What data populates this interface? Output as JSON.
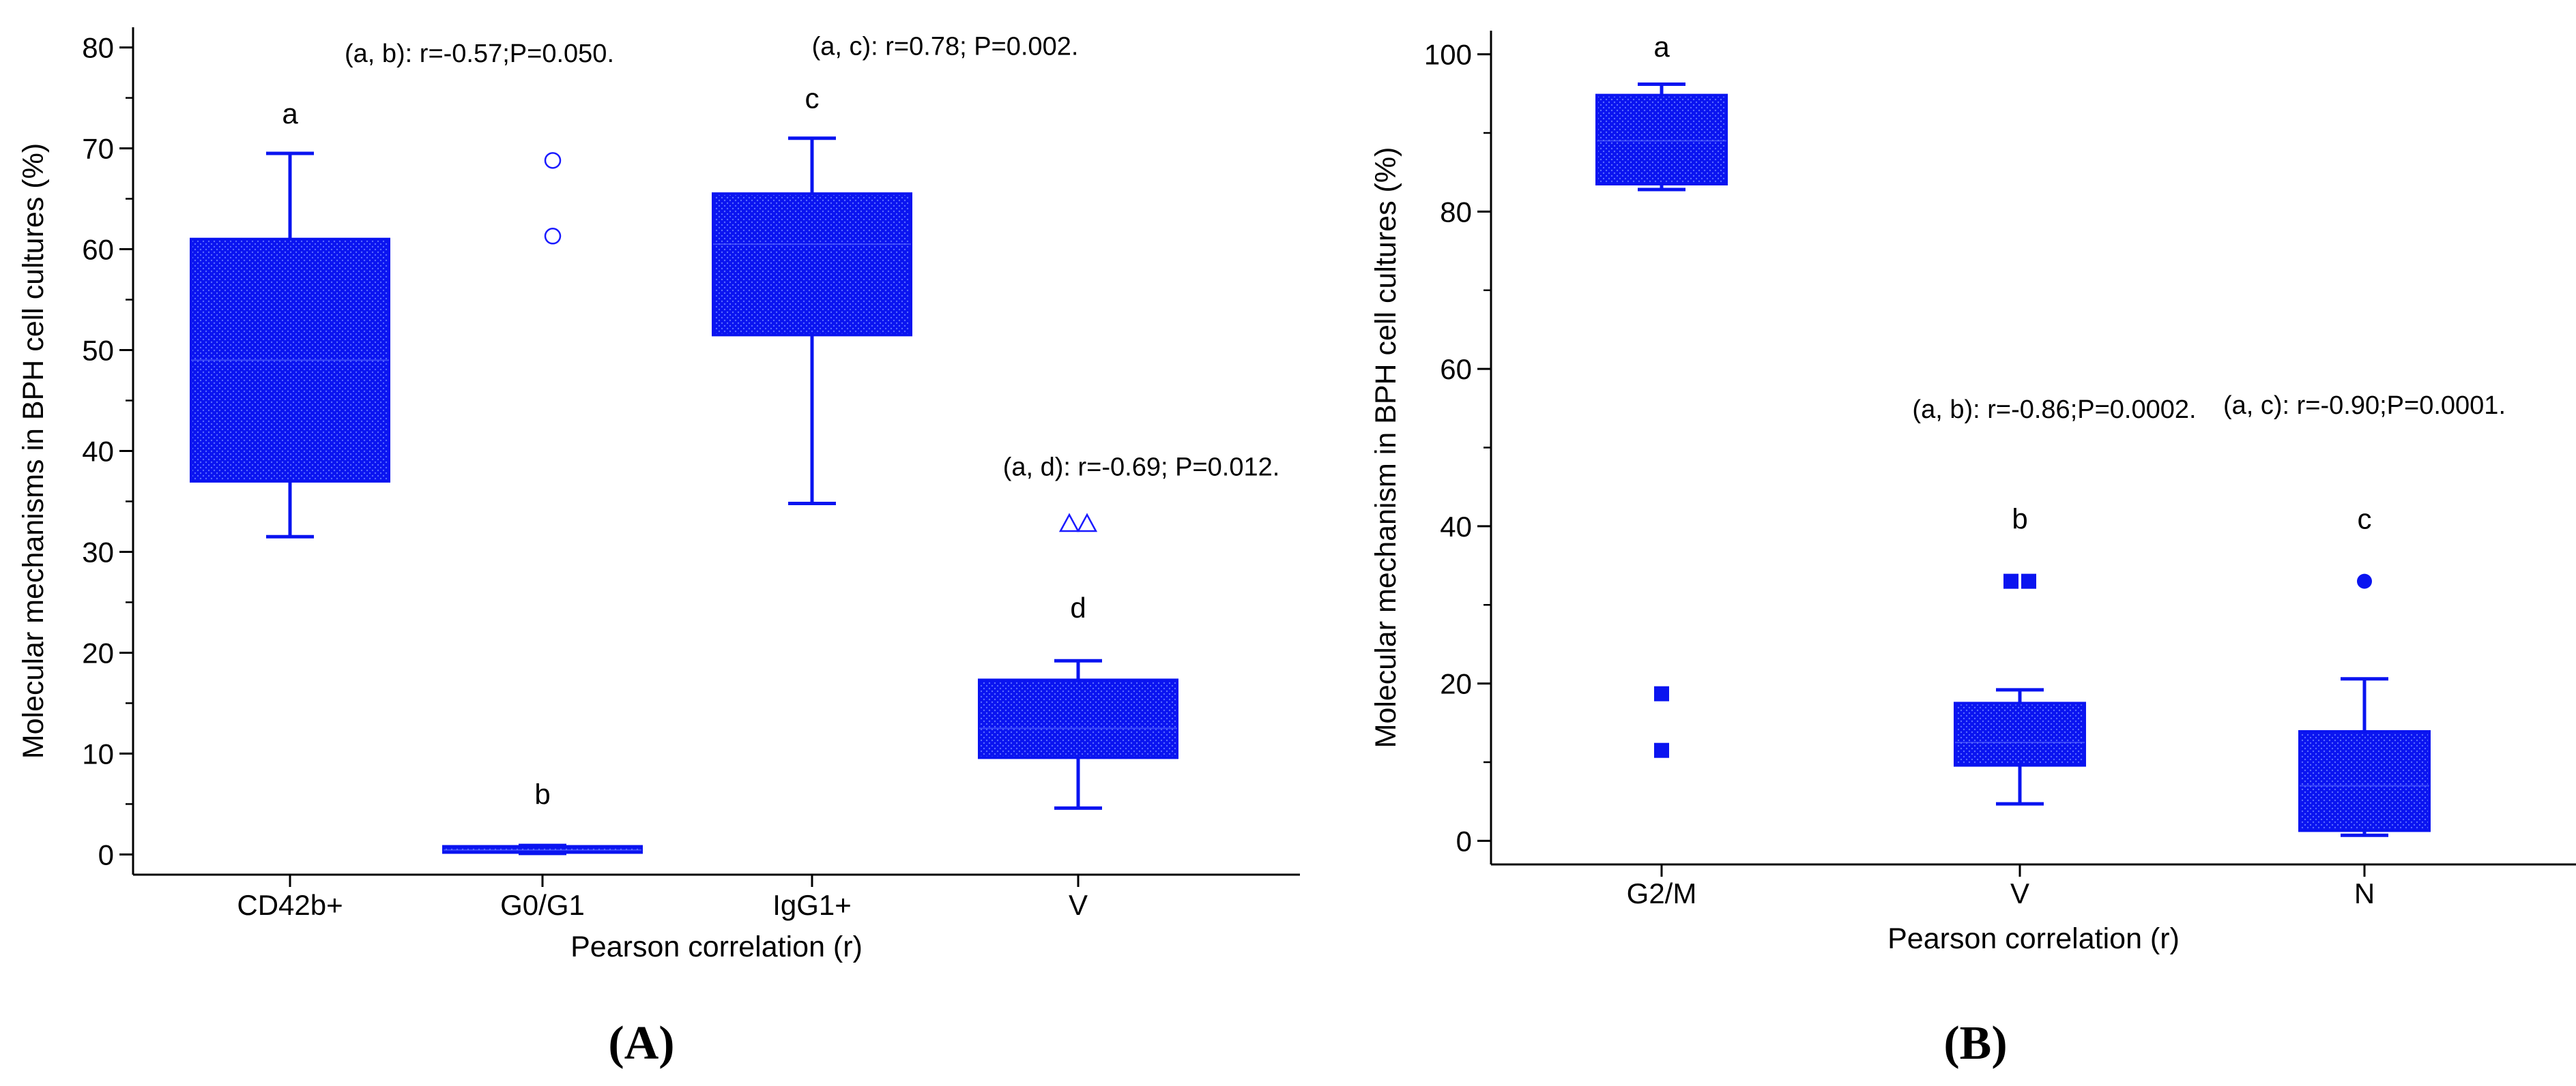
{
  "colors": {
    "box": "#0a14f0",
    "box_texture": "#5a6cff",
    "outlier": "#1a1aff",
    "axis": "#000000"
  },
  "chart_data": [
    {
      "panel_label": "A",
      "type": "box",
      "ylabel": "Molecular mechanisms in BPH cell cultures (%)",
      "xlabel": "Pearson correlation (r)",
      "ylim": [
        -2,
        82
      ],
      "yticks": [
        0,
        10,
        20,
        30,
        40,
        50,
        60,
        70,
        80
      ],
      "yticklabels": [
        "0",
        "10",
        "20",
        "30",
        "40",
        "50",
        "60",
        "70",
        "80"
      ],
      "categories": [
        "CD42b+",
        "G0/G1",
        "IgG1+",
        "V"
      ],
      "boxes": [
        {
          "category": "CD42b+",
          "whisker_low": 31.5,
          "q1": 37,
          "median": 49,
          "q3": 61,
          "whisker_high": 69.5,
          "letter": "a",
          "letter_y": 73.5,
          "outliers": [],
          "outlier_marker": ""
        },
        {
          "category": "G0/G1",
          "whisker_low": 0.1,
          "q1": 0.2,
          "median": 0.45,
          "q3": 0.8,
          "whisker_high": 0.9,
          "letter": "b",
          "letter_y": 6,
          "outliers": [
            61.3,
            68.8
          ],
          "outlier_marker": "circle"
        },
        {
          "category": "IgG1+",
          "whisker_low": 34.8,
          "q1": 51.5,
          "median": 60.5,
          "q3": 65.5,
          "whisker_high": 71,
          "letter": "c",
          "letter_y": 75,
          "outliers": [],
          "outlier_marker": ""
        },
        {
          "category": "V",
          "whisker_low": 4.6,
          "q1": 9.6,
          "median": 12.5,
          "q3": 17.3,
          "whisker_high": 19.2,
          "letter": "d",
          "letter_y": 24.5,
          "outliers": [
            32.8
          ],
          "outlier_marker": "triangle-pair"
        }
      ],
      "annotations": [
        {
          "text": "(a, b): r=-0.57;P=0.050.",
          "x_cat": 0.75,
          "y": 79.5
        },
        {
          "text": "(a, c): r=0.78; P=0.002.",
          "x_cat": 2.5,
          "y": 80.2
        },
        {
          "text": "(a, d): r=-0.69; P=0.012.",
          "x_cat": 3.25,
          "y": 38.5
        }
      ]
    },
    {
      "panel_label": "B",
      "type": "box",
      "ylabel": "Molecular mechanism in BPH cell cultures (%)",
      "xlabel": "Pearson correlation (r)",
      "ylim": [
        -3,
        103
      ],
      "yticks": [
        0,
        20,
        40,
        60,
        80,
        100
      ],
      "yticklabels": [
        "0",
        "20",
        "40",
        "60",
        "80",
        "100"
      ],
      "categories": [
        "G2/M",
        "V",
        "N"
      ],
      "boxes": [
        {
          "category": "G2/M",
          "whisker_low": 82.8,
          "q1": 83.5,
          "median": 89,
          "q3": 94.8,
          "whisker_high": 96.2,
          "letter": "a",
          "letter_y": 101,
          "outliers": [
            11.5,
            18.7
          ],
          "outlier_marker": "square"
        },
        {
          "category": "V",
          "whisker_low": 4.7,
          "q1": 9.6,
          "median": 12.5,
          "q3": 17.5,
          "whisker_high": 19.2,
          "letter": "b",
          "letter_y": 41,
          "outliers": [
            33
          ],
          "outlier_marker": "square-pair"
        },
        {
          "category": "N",
          "whisker_low": 0.7,
          "q1": 1.3,
          "median": 7,
          "q3": 13.9,
          "whisker_high": 20.6,
          "letter": "c",
          "letter_y": 41,
          "outliers": [
            33
          ],
          "outlier_marker": "dot"
        }
      ],
      "annotations": [
        {
          "text": "(a, b): r=-0.86;P=0.0002.",
          "x_cat": 1.1,
          "y": 55
        },
        {
          "text": "(a, c): r=-0.90;P=0.0001.",
          "x_cat": 2.0,
          "y": 55.5
        }
      ]
    }
  ]
}
